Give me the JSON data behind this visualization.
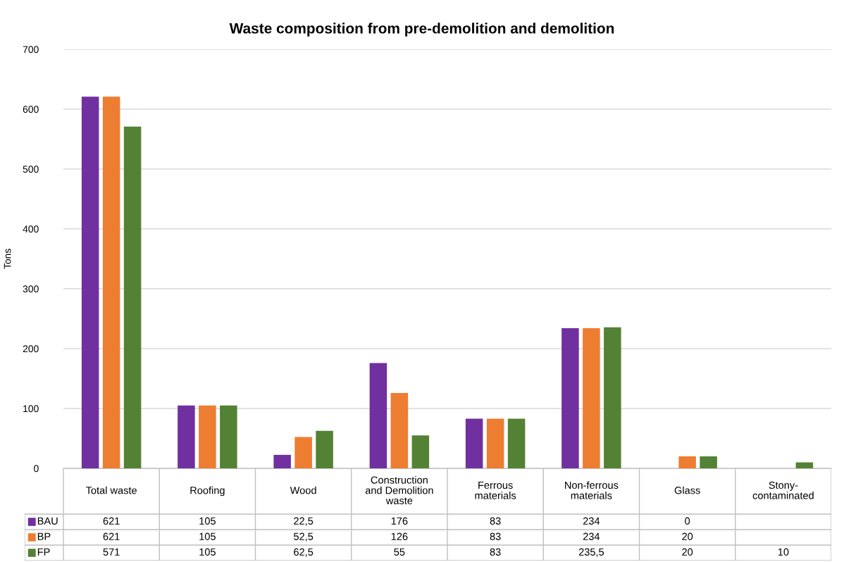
{
  "chart_data": {
    "type": "bar",
    "title": "Waste composition from pre-demolition and demolition",
    "ylabel": "Tons",
    "categories": [
      "Total waste",
      "Roofing",
      "Wood",
      "Construction\nand Demolition\nwaste",
      "Ferrous\nmaterials",
      "Non-ferrous\nmaterials",
      "Glass",
      "Stony-\ncontaminated"
    ],
    "series": [
      {
        "name": "BAU",
        "color": "#7030a0",
        "values": [
          621,
          105,
          22.5,
          176,
          83,
          234,
          0,
          null
        ],
        "value_labels": [
          "621",
          "105",
          "22,5",
          "176",
          "83",
          "234",
          "0",
          null
        ]
      },
      {
        "name": "BP",
        "color": "#ed7d31",
        "values": [
          621,
          105,
          52.5,
          126,
          83,
          234,
          20,
          null
        ],
        "value_labels": [
          "621",
          "105",
          "52,5",
          "126",
          "83",
          "234",
          "20",
          null
        ]
      },
      {
        "name": "FP",
        "color": "#548235",
        "values": [
          571,
          105,
          62.5,
          55,
          83,
          235.5,
          20,
          10
        ],
        "value_labels": [
          "571",
          "105",
          "62,5",
          "55",
          "83",
          "235,5",
          "20",
          "10"
        ]
      }
    ],
    "ylim": [
      0,
      700
    ],
    "yticks": [
      0,
      100,
      200,
      300,
      400,
      500,
      600,
      700
    ],
    "grid": "y",
    "legend": "bottom left"
  }
}
